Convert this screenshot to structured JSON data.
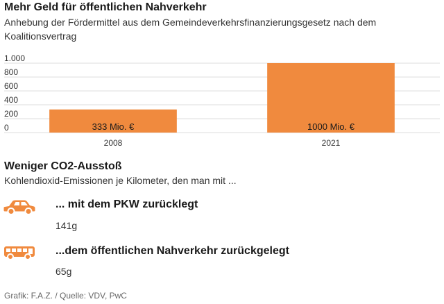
{
  "colors": {
    "accent": "#f08a3e",
    "grid": "#dddddd",
    "text": "#1a1a1a"
  },
  "chart_data": {
    "type": "bar",
    "title": "Mehr Geld für öffentlichen Nahverkehr",
    "subtitle": "Anhebung der Fördermittel aus dem Gemeindeverkehrsfinanzierungsgesetz nach dem Koalitionsvertrag",
    "categories": [
      "2008",
      "2021"
    ],
    "values": [
      333,
      1000
    ],
    "data_labels": [
      "333 Mio. €",
      "1000 Mio. €"
    ],
    "yticks": [
      0,
      200,
      400,
      600,
      800,
      1000
    ],
    "ytick_labels": [
      "0",
      "200",
      "400",
      "600",
      "800",
      "1.000"
    ],
    "ylim": [
      0,
      1000
    ],
    "grid": true,
    "xlabel": "",
    "ylabel": ""
  },
  "co2": {
    "title": "Weniger CO2-Ausstoß",
    "subtitle": "Kohlendioxid-Emissionen je Kilometer, den man mit ...",
    "items": [
      {
        "icon": "car-icon",
        "label": "... mit dem PKW zurücklegt",
        "value": "141g"
      },
      {
        "icon": "bus-icon",
        "label": "...dem öffentlichen Nahverkehr zurückgelegt",
        "value": "65g"
      }
    ]
  },
  "source": "Grafik: F.A.Z. / Quelle: VDV, PwC"
}
